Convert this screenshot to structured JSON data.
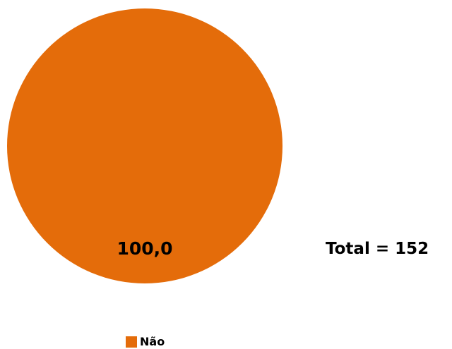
{
  "chart_data": {
    "type": "pie",
    "categories": [
      "Não"
    ],
    "values": [
      100.0
    ],
    "data_labels": [
      "100,0"
    ],
    "colors": [
      "#E46C0A"
    ],
    "legend_placement": "bottom",
    "annotation": "Total = 152"
  }
}
